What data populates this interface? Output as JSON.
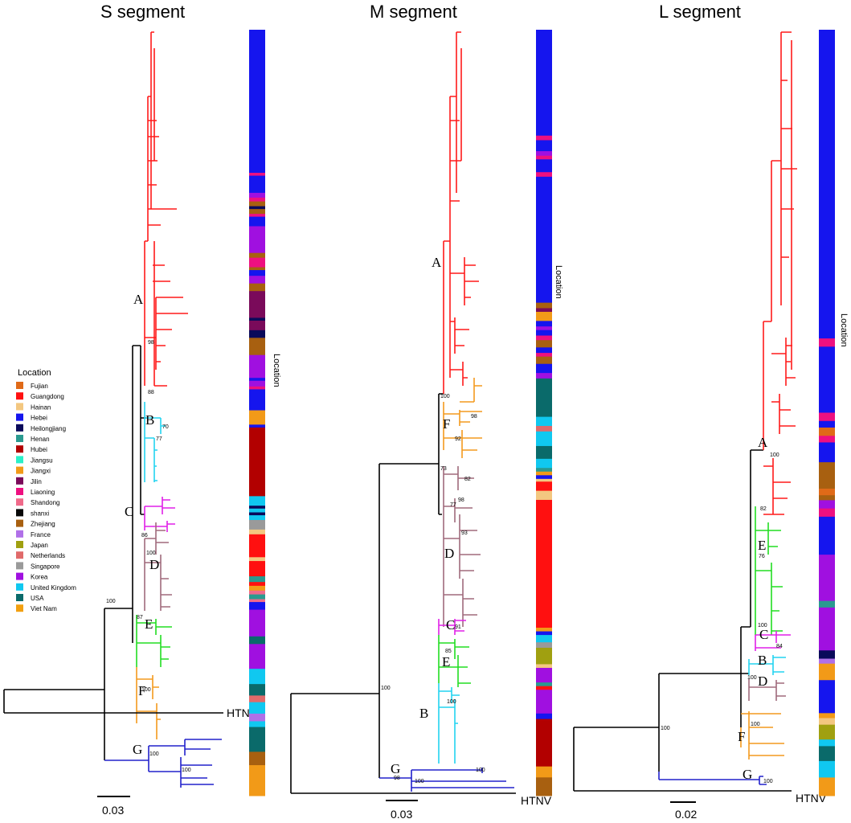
{
  "colors": {
    "A": "#ff1a1a",
    "B": "#22d4f0",
    "C": "#e020e8",
    "D": "#a06a7c",
    "E": "#22dd22",
    "F": "#f39a1e",
    "G": "#2222cc",
    "backbone": "#000000"
  },
  "locations": [
    {
      "name": "Fujian",
      "color": "#e06a18"
    },
    {
      "name": "Guangdong",
      "color": "#ff1010"
    },
    {
      "name": "Hainan",
      "color": "#f3c780"
    },
    {
      "name": "Hebei",
      "color": "#1515ee"
    },
    {
      "name": "Heilongjiang",
      "color": "#0a0a5a"
    },
    {
      "name": "Henan",
      "color": "#2a9a90"
    },
    {
      "name": "Hubei",
      "color": "#b20000"
    },
    {
      "name": "Jiangsu",
      "color": "#2af0c8"
    },
    {
      "name": "Jiangxi",
      "color": "#f29a18"
    },
    {
      "name": "Jilin",
      "color": "#7a0a5a"
    },
    {
      "name": "Liaoning",
      "color": "#ee1080"
    },
    {
      "name": "Shandong",
      "color": "#f06a8a"
    },
    {
      "name": "shanxi",
      "color": "#080808"
    },
    {
      "name": "Zhejiang",
      "color": "#a86010"
    },
    {
      "name": "France",
      "color": "#b070e8"
    },
    {
      "name": "Japan",
      "color": "#a0a010"
    },
    {
      "name": "Netherlands",
      "color": "#e06a6a"
    },
    {
      "name": "Singapore",
      "color": "#9a9a9a"
    },
    {
      "name": "Korea",
      "color": "#a010e0"
    },
    {
      "name": "United Kingdom",
      "color": "#10c8f0"
    },
    {
      "name": "USA",
      "color": "#0a6a6a"
    },
    {
      "name": "Viet Nam",
      "color": "#f2a010"
    }
  ],
  "legend_title": "Location",
  "location_bar_label": "Location",
  "outgroup_label": "HTNV",
  "panels": [
    {
      "title": "S segment",
      "scale_label": "0.03",
      "clades": [
        {
          "id": "A",
          "label": "A"
        },
        {
          "id": "B",
          "label": "B"
        },
        {
          "id": "C",
          "label": "C"
        },
        {
          "id": "D",
          "label": "D"
        },
        {
          "id": "E",
          "label": "E"
        },
        {
          "id": "F",
          "label": "F"
        },
        {
          "id": "G",
          "label": "G"
        }
      ],
      "bootstrap": [
        "100",
        "100",
        "100",
        "100",
        "86",
        "87",
        "100",
        "98",
        "88",
        "77",
        "70"
      ],
      "location_bar": [
        [
          "Hebei",
          150
        ],
        [
          "Liaoning",
          3
        ],
        [
          "Hebei",
          18
        ],
        [
          "Korea",
          5
        ],
        [
          "Liaoning",
          4
        ],
        [
          "Zhejiang",
          5
        ],
        [
          "Heilongjiang",
          3
        ],
        [
          "Zhejiang",
          5
        ],
        [
          "Liaoning",
          3
        ],
        [
          "Hebei",
          10
        ],
        [
          "Korea",
          28
        ],
        [
          "Zhejiang",
          5
        ],
        [
          "Liaoning",
          10
        ],
        [
          "Zhejiang",
          3
        ],
        [
          "Hebei",
          6
        ],
        [
          "Korea",
          8
        ],
        [
          "Zhejiang",
          8
        ],
        [
          "Jilin",
          28
        ],
        [
          "Heilongjiang",
          3
        ],
        [
          "Jilin",
          10
        ],
        [
          "Heilongjiang",
          8
        ],
        [
          "Zhejiang",
          18
        ],
        [
          "Korea",
          24
        ],
        [
          "Hebei",
          3
        ],
        [
          "Korea",
          6
        ],
        [
          "Liaoning",
          3
        ],
        [
          "Hebei",
          22
        ],
        [
          "Jiangxi",
          15
        ],
        [
          "Hebei",
          3
        ],
        [
          "Hubei",
          72
        ],
        [
          "United Kingdom",
          10
        ],
        [
          "Heilongjiang",
          3
        ],
        [
          "United Kingdom",
          4
        ],
        [
          "Heilongjiang",
          3
        ],
        [
          "United Kingdom",
          5
        ],
        [
          "Singapore",
          10
        ],
        [
          "Hainan",
          5
        ],
        [
          "Guangdong",
          24
        ],
        [
          "Hainan",
          4
        ],
        [
          "Guangdong",
          16
        ],
        [
          "Henan",
          6
        ],
        [
          "Guangdong",
          4
        ],
        [
          "Jiangxi",
          5
        ],
        [
          "Shandong",
          4
        ],
        [
          "Henan",
          5
        ],
        [
          "Shandong",
          3
        ],
        [
          "Hebei",
          8
        ],
        [
          "Korea",
          28
        ],
        [
          "USA",
          8
        ],
        [
          "Korea",
          26
        ],
        [
          "United Kingdom",
          16
        ],
        [
          "USA",
          12
        ],
        [
          "Netherlands",
          7
        ],
        [
          "United Kingdom",
          12
        ],
        [
          "France",
          8
        ],
        [
          "United Kingdom",
          6
        ],
        [
          "USA",
          26
        ],
        [
          "Zhejiang",
          14
        ],
        [
          "Jiangxi",
          32
        ]
      ]
    },
    {
      "title": "M segment",
      "scale_label": "0.03",
      "clades": [
        {
          "id": "A",
          "label": "A"
        },
        {
          "id": "F",
          "label": "F"
        },
        {
          "id": "D",
          "label": "D"
        },
        {
          "id": "C",
          "label": "C"
        },
        {
          "id": "E",
          "label": "E"
        },
        {
          "id": "B",
          "label": "B"
        },
        {
          "id": "G",
          "label": "G"
        }
      ],
      "bootstrap": [
        "100",
        "100",
        "100",
        "100",
        "98",
        "92",
        "73",
        "82",
        "98",
        "93",
        "91",
        "85",
        "77",
        "100",
        "98"
      ],
      "location_bar": [
        [
          "Hebei",
          116
        ],
        [
          "Liaoning",
          5
        ],
        [
          "Hebei",
          12
        ],
        [
          "Korea",
          5
        ],
        [
          "Liaoning",
          4
        ],
        [
          "Hebei",
          14
        ],
        [
          "Liaoning",
          5
        ],
        [
          "Hebei",
          138
        ],
        [
          "Zhejiang",
          6
        ],
        [
          "Jilin",
          4
        ],
        [
          "Jiangxi",
          10
        ],
        [
          "Hebei",
          6
        ],
        [
          "Korea",
          4
        ],
        [
          "Hebei",
          6
        ],
        [
          "Liaoning",
          5
        ],
        [
          "Zhejiang",
          8
        ],
        [
          "Hebei",
          6
        ],
        [
          "Liaoning",
          4
        ],
        [
          "Zhejiang",
          8
        ],
        [
          "Hebei",
          10
        ],
        [
          "Korea",
          6
        ],
        [
          "USA",
          42
        ],
        [
          "United Kingdom",
          10
        ],
        [
          "Netherlands",
          6
        ],
        [
          "United Kingdom",
          16
        ],
        [
          "USA",
          14
        ],
        [
          "United Kingdom",
          10
        ],
        [
          "Henan",
          4
        ],
        [
          "Jiangxi",
          4
        ],
        [
          "Hebei",
          4
        ],
        [
          "Hainan",
          3
        ],
        [
          "Guangdong",
          10
        ],
        [
          "Hainan",
          10
        ],
        [
          "Guangdong",
          140
        ],
        [
          "Jiangxi",
          4
        ],
        [
          "Hebei",
          4
        ],
        [
          "United Kingdom",
          8
        ],
        [
          "Singapore",
          6
        ],
        [
          "Japan",
          18
        ],
        [
          "Hainan",
          4
        ],
        [
          "Korea",
          16
        ],
        [
          "Henan",
          4
        ],
        [
          "Guangdong",
          4
        ],
        [
          "Korea",
          26
        ],
        [
          "Hebei",
          6
        ],
        [
          "Hubei",
          52
        ],
        [
          "Jiangxi",
          12
        ],
        [
          "Zhejiang",
          20
        ]
      ]
    },
    {
      "title": "L segment",
      "scale_label": "0.02",
      "clades": [
        {
          "id": "A",
          "label": "A"
        },
        {
          "id": "E",
          "label": "E"
        },
        {
          "id": "C",
          "label": "C"
        },
        {
          "id": "B",
          "label": "B"
        },
        {
          "id": "D",
          "label": "D"
        },
        {
          "id": "F",
          "label": "F"
        },
        {
          "id": "G",
          "label": "G"
        }
      ],
      "bootstrap": [
        "100",
        "100",
        "100",
        "100",
        "100",
        "82",
        "76",
        "84",
        "100"
      ],
      "location_bar": [
        [
          "Hebei",
          374
        ],
        [
          "Liaoning",
          10
        ],
        [
          "Hebei",
          80
        ],
        [
          "Liaoning",
          10
        ],
        [
          "Hebei",
          8
        ],
        [
          "Fujian",
          10
        ],
        [
          "Liaoning",
          8
        ],
        [
          "Hebei",
          24
        ],
        [
          "Zhejiang",
          32
        ],
        [
          "Fujian",
          8
        ],
        [
          "Zhejiang",
          6
        ],
        [
          "Korea",
          10
        ],
        [
          "Liaoning",
          10
        ],
        [
          "Hebei",
          46
        ],
        [
          "Korea",
          56
        ],
        [
          "Henan",
          8
        ],
        [
          "Korea",
          52
        ],
        [
          "Heilongjiang",
          10
        ],
        [
          "France",
          6
        ],
        [
          "Jiangxi",
          20
        ],
        [
          "Hebei",
          40
        ],
        [
          "Jiangxi",
          6
        ],
        [
          "Hainan",
          8
        ],
        [
          "Japan",
          18
        ],
        [
          "United Kingdom",
          8
        ],
        [
          "USA",
          18
        ],
        [
          "United Kingdom",
          20
        ],
        [
          "Jiangxi",
          22
        ]
      ]
    }
  ]
}
